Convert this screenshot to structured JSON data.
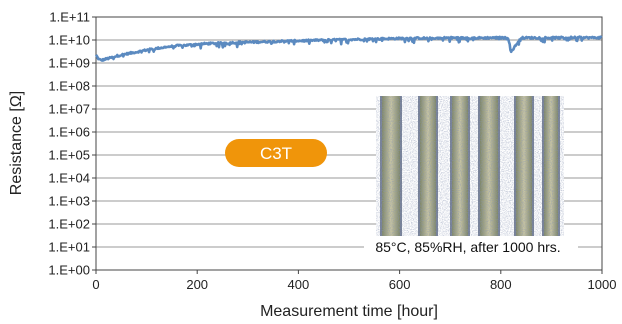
{
  "chart_data": {
    "type": "line",
    "xlabel": "Measurement time [hour]",
    "ylabel": "Resistance [Ω]",
    "xlim": [
      0,
      1000
    ],
    "x_ticks": [
      0,
      200,
      400,
      600,
      800,
      1000
    ],
    "x_tick_labels": [
      "0",
      "200",
      "400",
      "600",
      "800",
      "1000"
    ],
    "ylim": [
      1,
      100000000000
    ],
    "y_scale": "log",
    "y_ticks": [
      1,
      10,
      100,
      1000,
      10000,
      100000,
      1000000,
      10000000,
      100000000,
      1000000000,
      10000000000,
      100000000000
    ],
    "y_tick_labels": [
      "1.E+00",
      "1.E+01",
      "1.E+02",
      "1.E+03",
      "1.E+04",
      "1.E+05",
      "1.E+06",
      "1.E+07",
      "1.E+08",
      "1.E+09",
      "1.E+10",
      "1.E+11"
    ],
    "grid": "horizontal",
    "series": [
      {
        "color": "#5b8ac0",
        "x": [
          0,
          5,
          10,
          20,
          30,
          40,
          60,
          80,
          100,
          120,
          140,
          160,
          180,
          200,
          220,
          240,
          260,
          280,
          300,
          320,
          340,
          360,
          380,
          400,
          420,
          440,
          460,
          480,
          500,
          520,
          540,
          560,
          580,
          600,
          620,
          640,
          660,
          680,
          700,
          720,
          740,
          760,
          780,
          800,
          815,
          820,
          840,
          860,
          880,
          900,
          920,
          940,
          960,
          980,
          1000
        ],
        "y": [
          2200000000,
          1500000000,
          1300000000,
          1500000000,
          1700000000,
          2000000000,
          2500000000,
          3000000000,
          3700000000,
          4300000000,
          5000000000,
          5600000000,
          6000000000,
          6500000000,
          7000000000,
          7200000000,
          7500000000,
          7800000000,
          8000000000,
          8200000000,
          8500000000,
          8800000000,
          9000000000,
          9200000000,
          9500000000,
          9800000000,
          10000000000,
          10300000000,
          10500000000,
          10800000000,
          11000000000,
          11200000000,
          11500000000,
          11700000000,
          12000000000,
          12000000000,
          11800000000,
          12200000000,
          12500000000,
          12200000000,
          12000000000,
          12300000000,
          12500000000,
          12500000000,
          12200000000,
          3000000000,
          12300000000,
          12500000000,
          12600000000,
          12500000000,
          12600000000,
          12700000000,
          12800000000,
          12600000000,
          12800000000
        ]
      }
    ],
    "annotations": {
      "badge": {
        "text": "C3T",
        "color": "#f0950a"
      },
      "caption": "85°C, 85%RH, after 1000 hrs."
    }
  }
}
